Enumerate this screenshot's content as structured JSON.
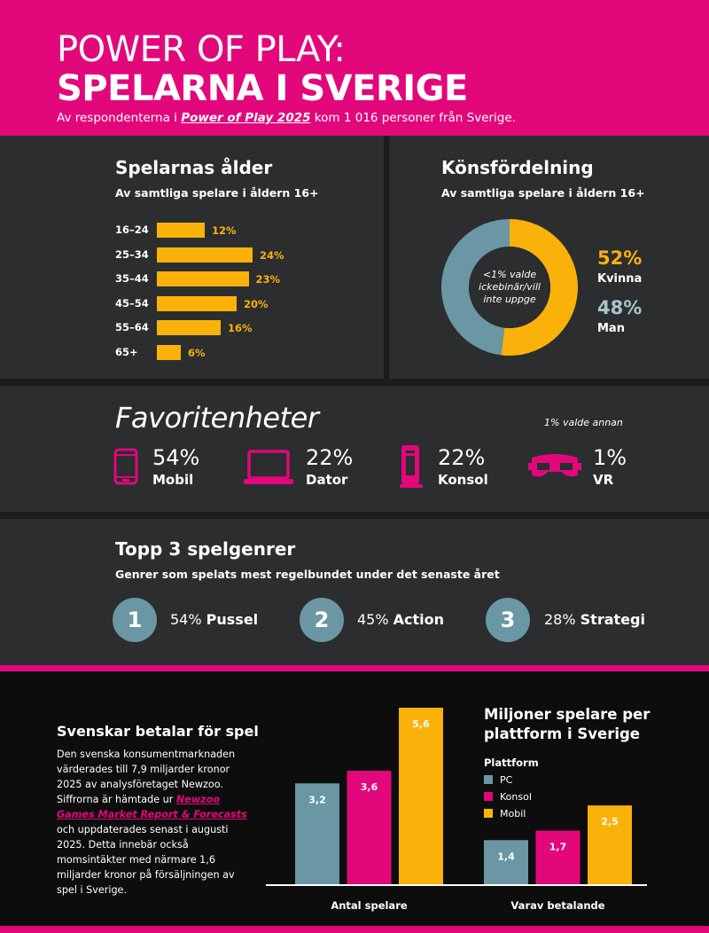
{
  "header": {
    "title_line1": "POWER OF PLAY:",
    "title_line2": "SPELARNA I SVERIGE",
    "subtitle_pre": "Av respondenterna i ",
    "subtitle_link": "Power of Play 2025",
    "subtitle_post": " kom 1 016 personer från Sverige."
  },
  "age": {
    "title": "Spelarnas ålder",
    "subtitle": "Av samtliga spelare i åldern 16+",
    "groups": [
      "16–24",
      "25–34",
      "35–44",
      "45–54",
      "55–64",
      "65+"
    ],
    "value_labels": [
      "12%",
      "24%",
      "23%",
      "20%",
      "16%",
      "6%"
    ]
  },
  "gender": {
    "title": "Könsfördelning",
    "subtitle": "Av samtliga spelare i åldern 16+",
    "center_text": "<1% valde ickebinär/vill inte uppge",
    "female_pct": "52%",
    "female_label": "Kvinna",
    "male_pct": "48%",
    "male_label": "Man",
    "female_color": "#fab20b",
    "male_color": "#6a97a3"
  },
  "favorites": {
    "title": "Favoritenheter",
    "note": "1% valde annan",
    "items": [
      {
        "pct": "54%",
        "label": "Mobil",
        "icon": "phone-icon"
      },
      {
        "pct": "22%",
        "label": "Dator",
        "icon": "laptop-icon"
      },
      {
        "pct": "22%",
        "label": "Konsol",
        "icon": "console-icon"
      },
      {
        "pct": "1%",
        "label": "VR",
        "icon": "vr-headset-icon"
      }
    ]
  },
  "genres": {
    "title": "Topp 3 spelgenrer",
    "subtitle": "Genrer som spelats mest regelbundet under det senaste året",
    "items": [
      {
        "rank": "1",
        "pct": "54%",
        "name": "Pussel"
      },
      {
        "rank": "2",
        "pct": "45%",
        "name": "Action"
      },
      {
        "rank": "3",
        "pct": "28%",
        "name": "Strategi"
      }
    ]
  },
  "spending": {
    "title": "Svenskar betalar för spel",
    "body_pre": "Den svenska konsumentmarknaden värderades till 7,9 miljarder kronor 2025 av analysföretaget Newzoo. Siffrorna är hämtade ur ",
    "body_link": "Newzoo Games Market Report & Forecasts",
    "body_post": " och uppdaterades senast i augusti 2025. Detta innebär också momsintäkter med närmare 1,6 miljarder kronor på försäljningen av spel i Sverige."
  },
  "chart_data": [
    {
      "type": "bar",
      "title": "Spelarnas ålder",
      "subtitle": "Av samtliga spelare i åldern 16+",
      "orientation": "horizontal",
      "categories": [
        "16–24",
        "25–34",
        "35–44",
        "45–54",
        "55–64",
        "65+"
      ],
      "values": [
        12,
        24,
        23,
        20,
        16,
        6
      ],
      "unit": "%",
      "color": "#fab20b"
    },
    {
      "type": "pie",
      "title": "Könsfördelning",
      "subtitle": "Av samtliga spelare i åldern 16+",
      "donut": true,
      "categories": [
        "Kvinna",
        "Man"
      ],
      "values": [
        52,
        48
      ],
      "unit": "%",
      "colors": [
        "#fab20b",
        "#6a97a3"
      ]
    },
    {
      "type": "bar",
      "title": "Miljoner spelare per plattform i Sverige",
      "legend_title": "Plattform",
      "categories": [
        "Antal spelare",
        "Varav betalande"
      ],
      "series": [
        {
          "name": "PC",
          "color": "#6a97a3",
          "values": [
            3.2,
            1.4
          ],
          "labels": [
            "3,2",
            "1,4"
          ]
        },
        {
          "name": "Konsol",
          "color": "#e2077b",
          "values": [
            3.6,
            1.7
          ],
          "labels": [
            "3,6",
            "1,7"
          ]
        },
        {
          "name": "Mobil",
          "color": "#fab20b",
          "values": [
            5.6,
            2.5
          ],
          "labels": [
            "5,6",
            "2,5"
          ]
        }
      ],
      "ylim": [
        0,
        5.6
      ],
      "grid": false
    }
  ]
}
